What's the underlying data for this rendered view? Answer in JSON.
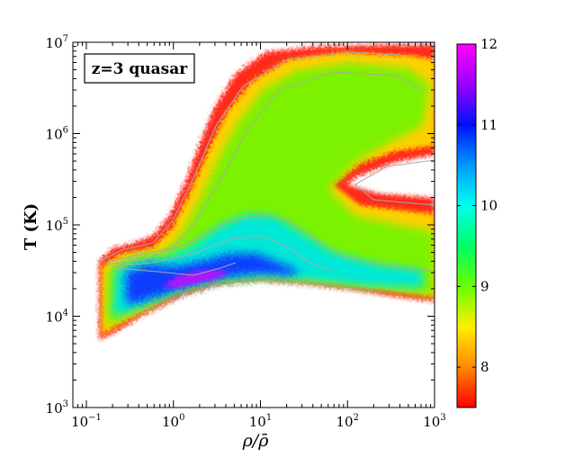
{
  "chart_data": {
    "type": "heatmap",
    "annotation": "z=3 quasar",
    "xlabel": "ρ/ρ̄",
    "ylabel": "T (K)",
    "x_scale": "log",
    "y_scale": "log",
    "xlim": [
      0.07,
      1000
    ],
    "ylim": [
      1000,
      10000000
    ],
    "x_ticks": [
      {
        "value": 0.1,
        "base": "10",
        "exp": "−1"
      },
      {
        "value": 1,
        "base": "10",
        "exp": "0"
      },
      {
        "value": 10,
        "base": "10",
        "exp": "1"
      },
      {
        "value": 100,
        "base": "10",
        "exp": "2"
      },
      {
        "value": 1000,
        "base": "10",
        "exp": "3"
      }
    ],
    "y_ticks": [
      {
        "value": 1000,
        "base": "10",
        "exp": "3"
      },
      {
        "value": 10000,
        "base": "10",
        "exp": "4"
      },
      {
        "value": 100000,
        "base": "10",
        "exp": "5"
      },
      {
        "value": 1000000,
        "base": "10",
        "exp": "6"
      },
      {
        "value": 10000000,
        "base": "10",
        "exp": "7"
      }
    ],
    "colorbar": {
      "range": [
        7.5,
        12
      ],
      "ticks": [
        "8",
        "9",
        "10",
        "11",
        "12"
      ],
      "tick_values": [
        8,
        9,
        10,
        11,
        12
      ],
      "colormap": [
        "#ff0000",
        "#ff8800",
        "#ffee00",
        "#66ff00",
        "#00ff66",
        "#00ffee",
        "#0099ff",
        "#0011ff",
        "#9900ff",
        "#ff00ff"
      ]
    },
    "distribution_ridge": [
      {
        "x": 0.13,
        "y": 5000,
        "z": 8.0
      },
      {
        "x": 0.18,
        "y": 12000,
        "z": 9.5
      },
      {
        "x": 0.3,
        "y": 20000,
        "z": 10.5
      },
      {
        "x": 0.6,
        "y": 18000,
        "z": 11.0
      },
      {
        "x": 2,
        "y": 20000,
        "z": 11.8
      },
      {
        "x": 5,
        "y": 25000,
        "z": 11.5
      },
      {
        "x": 10,
        "y": 35000,
        "z": 10.5
      },
      {
        "x": 10,
        "y": 130000,
        "z": 9.5
      },
      {
        "x": 50,
        "y": 1000000,
        "z": 8.8
      },
      {
        "x": 300,
        "y": 4000000,
        "z": 8.5
      },
      {
        "x": 1000,
        "y": 20000,
        "z": 9.3
      }
    ],
    "colors": {
      "axis": "#000000",
      "contour": "#aaaaaa",
      "frame_bg": "#ffffff"
    }
  }
}
